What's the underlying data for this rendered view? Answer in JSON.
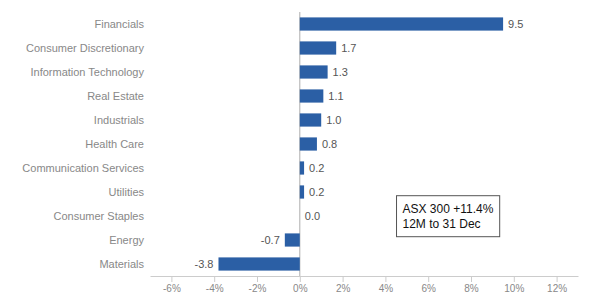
{
  "chart_data": {
    "type": "bar",
    "orientation": "horizontal",
    "categories": [
      "Materials",
      "Energy",
      "Consumer Staples",
      "Utilities",
      "Communication Services",
      "Health Care",
      "Industrials",
      "Real Estate",
      "Information Technology",
      "Consumer Discretionary",
      "Financials"
    ],
    "values": [
      -3.8,
      -0.7,
      0.0,
      0.2,
      0.2,
      0.8,
      1.0,
      1.1,
      1.3,
      1.7,
      9.5
    ],
    "value_labels": [
      "-3.8",
      "-0.7",
      "0.0",
      "0.2",
      "0.2",
      "0.8",
      "1.0",
      "1.1",
      "1.3",
      "1.7",
      "9.5"
    ],
    "data_labels": true,
    "color": "#2b5fa5",
    "xlim": [
      -7,
      13
    ],
    "xticks": [
      {
        "value": -6,
        "label": "-6%"
      },
      {
        "value": -4,
        "label": "-4%"
      },
      {
        "value": -2,
        "label": "-2%"
      },
      {
        "value": 0,
        "label": "0%"
      },
      {
        "value": 2,
        "label": "2%"
      },
      {
        "value": 4,
        "label": "4%"
      },
      {
        "value": 6,
        "label": "6%"
      },
      {
        "value": 8,
        "label": "8%"
      },
      {
        "value": 10,
        "label": "10%"
      },
      {
        "value": 12,
        "label": "12%"
      }
    ],
    "grid": false,
    "annotations": [
      "ASX 300 +11.4%",
      "12M to 31 Dec"
    ]
  }
}
